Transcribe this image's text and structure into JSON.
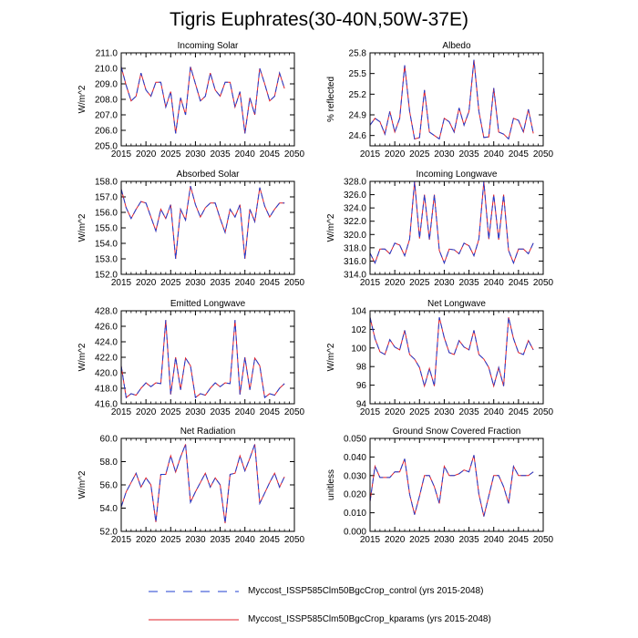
{
  "title": "Tigris Euphrates(30-40N,50W-37E)",
  "colors": {
    "control": "#1f3fd0",
    "kparams": "#e0202a",
    "axis": "#000000"
  },
  "legend": {
    "control_label": "Myccost_ISSP585Clm50BgcCrop_control (yrs 2015-2048)",
    "kparams_label": "Myccost_ISSP585Clm50BgcCrop_kparams (yrs 2015-2048)"
  },
  "chart_data": [
    {
      "type": "line",
      "title": "Incoming Solar",
      "xlabel": "",
      "ylabel": "W/m^2",
      "xlim": [
        2015,
        2050
      ],
      "ylim": [
        205.0,
        211.0
      ],
      "xticks": [
        2015,
        2020,
        2025,
        2030,
        2035,
        2040,
        2045,
        2050
      ],
      "yticks": [
        "205.0",
        "206.0",
        "207.0",
        "208.0",
        "209.0",
        "210.0",
        "211.0"
      ],
      "x_start": 2015,
      "series": [
        {
          "name": "control",
          "values": [
            210.1,
            208.9,
            207.9,
            208.2,
            209.7,
            208.6,
            208.2,
            209.1,
            209.1,
            207.5,
            208.5,
            205.8,
            208.1,
            207.0,
            210.1,
            209.0,
            207.9,
            208.2,
            209.7,
            208.6,
            208.2,
            209.1,
            209.1,
            207.5,
            208.5,
            205.8,
            208.1,
            207.0,
            210.0,
            209.0,
            207.9,
            208.2,
            209.7,
            208.7
          ]
        },
        {
          "name": "kparams",
          "values": [
            210.1,
            208.9,
            207.9,
            208.2,
            209.7,
            208.6,
            208.2,
            209.1,
            209.1,
            207.5,
            208.5,
            205.8,
            208.1,
            207.0,
            210.1,
            209.0,
            207.9,
            208.2,
            209.7,
            208.6,
            208.2,
            209.1,
            209.1,
            207.5,
            208.5,
            205.8,
            208.1,
            207.0,
            210.0,
            209.0,
            207.9,
            208.2,
            209.7,
            208.7
          ]
        }
      ]
    },
    {
      "type": "line",
      "title": "Albedo",
      "xlabel": "",
      "ylabel": "% reflected",
      "xlim": [
        2015,
        2050
      ],
      "ylim": [
        24.45,
        25.8
      ],
      "xticks": [
        2015,
        2020,
        2025,
        2030,
        2035,
        2040,
        2045,
        2050
      ],
      "yticks": [
        "24.6",
        "24.9",
        "25.2",
        "25.5",
        "25.8"
      ],
      "x_start": 2015,
      "series": [
        {
          "name": "control",
          "values": [
            24.75,
            24.85,
            24.8,
            24.62,
            24.95,
            24.65,
            24.85,
            25.62,
            24.95,
            24.55,
            24.57,
            25.26,
            24.65,
            24.6,
            24.55,
            24.85,
            24.8,
            24.65,
            25.0,
            24.75,
            24.95,
            25.7,
            24.95,
            24.57,
            24.58,
            25.29,
            24.65,
            24.62,
            24.55,
            24.85,
            24.82,
            24.65,
            24.98,
            24.63
          ]
        },
        {
          "name": "kparams",
          "values": [
            24.75,
            24.85,
            24.8,
            24.62,
            24.95,
            24.65,
            24.85,
            25.62,
            24.95,
            24.55,
            24.57,
            25.26,
            24.65,
            24.6,
            24.55,
            24.85,
            24.8,
            24.65,
            25.0,
            24.75,
            24.95,
            25.7,
            24.95,
            24.57,
            24.58,
            25.29,
            24.65,
            24.62,
            24.55,
            24.85,
            24.82,
            24.65,
            24.98,
            24.63
          ]
        }
      ]
    },
    {
      "type": "line",
      "title": "Absorbed Solar",
      "xlabel": "",
      "ylabel": "W/m^2",
      "xlim": [
        2015,
        2050
      ],
      "ylim": [
        152.0,
        158.0
      ],
      "xticks": [
        2015,
        2020,
        2025,
        2030,
        2035,
        2040,
        2045,
        2050
      ],
      "yticks": [
        "152.0",
        "153.0",
        "154.0",
        "155.0",
        "156.0",
        "157.0",
        "158.0"
      ],
      "x_start": 2015,
      "series": [
        {
          "name": "control",
          "values": [
            157.5,
            156.3,
            155.6,
            156.2,
            156.7,
            156.6,
            155.7,
            154.8,
            156.2,
            155.6,
            156.5,
            153.0,
            156.2,
            155.5,
            157.7,
            156.5,
            155.7,
            156.3,
            156.6,
            156.6,
            155.6,
            154.7,
            156.2,
            155.7,
            156.5,
            153.0,
            156.2,
            155.4,
            157.6,
            156.4,
            155.7,
            156.2,
            156.6,
            156.6
          ]
        },
        {
          "name": "kparams",
          "values": [
            157.5,
            156.3,
            155.6,
            156.2,
            156.7,
            156.6,
            155.7,
            154.8,
            156.2,
            155.6,
            156.5,
            153.0,
            156.2,
            155.5,
            157.7,
            156.5,
            155.7,
            156.3,
            156.6,
            156.6,
            155.6,
            154.7,
            156.2,
            155.7,
            156.5,
            153.0,
            156.2,
            155.4,
            157.6,
            156.4,
            155.7,
            156.2,
            156.6,
            156.6
          ]
        }
      ]
    },
    {
      "type": "line",
      "title": "Incoming Longwave",
      "xlabel": "",
      "ylabel": "W/m^2",
      "xlim": [
        2015,
        2050
      ],
      "ylim": [
        314.0,
        328.0
      ],
      "xticks": [
        2015,
        2020,
        2025,
        2030,
        2035,
        2040,
        2045,
        2050
      ],
      "yticks": [
        "314.0",
        "316.0",
        "318.0",
        "320.0",
        "322.0",
        "324.0",
        "326.0",
        "328.0"
      ],
      "x_start": 2015,
      "series": [
        {
          "name": "control",
          "values": [
            317.2,
            315.7,
            317.8,
            317.8,
            317.1,
            318.7,
            318.4,
            316.8,
            319.3,
            328.0,
            319.4,
            326.0,
            319.2,
            326.0,
            317.6,
            315.7,
            317.8,
            317.7,
            317.1,
            318.7,
            318.3,
            316.8,
            319.3,
            328.0,
            319.3,
            326.0,
            319.2,
            326.0,
            317.6,
            315.7,
            317.8,
            317.8,
            317.1,
            318.7
          ]
        },
        {
          "name": "kparams",
          "values": [
            317.2,
            315.7,
            317.8,
            317.8,
            317.1,
            318.7,
            318.4,
            316.8,
            319.3,
            328.0,
            319.4,
            326.0,
            319.2,
            326.0,
            317.6,
            315.7,
            317.8,
            317.7,
            317.1,
            318.7,
            318.3,
            316.8,
            319.3,
            328.0,
            319.3,
            326.0,
            319.2,
            326.0,
            317.6,
            315.7,
            317.8,
            317.8,
            317.1,
            318.7
          ]
        }
      ]
    },
    {
      "type": "line",
      "title": "Emitted Longwave",
      "xlabel": "",
      "ylabel": "W/m^2",
      "xlim": [
        2015,
        2050
      ],
      "ylim": [
        416.0,
        428.0
      ],
      "xticks": [
        2015,
        2020,
        2025,
        2030,
        2035,
        2040,
        2045,
        2050
      ],
      "yticks": [
        "416.0",
        "418.0",
        "420.0",
        "422.0",
        "424.0",
        "426.0",
        "428.0"
      ],
      "x_start": 2015,
      "series": [
        {
          "name": "control",
          "values": [
            420.9,
            416.8,
            417.3,
            417.1,
            418.0,
            418.7,
            418.2,
            418.7,
            418.6,
            426.8,
            417.2,
            422.0,
            417.8,
            421.9,
            420.9,
            416.8,
            417.3,
            417.1,
            418.0,
            418.7,
            418.2,
            418.7,
            418.6,
            426.8,
            417.2,
            422.0,
            417.8,
            421.9,
            420.9,
            416.8,
            417.3,
            417.1,
            418.0,
            418.6
          ]
        },
        {
          "name": "kparams",
          "values": [
            420.9,
            416.8,
            417.3,
            417.1,
            418.0,
            418.7,
            418.2,
            418.7,
            418.6,
            426.8,
            417.2,
            422.0,
            417.8,
            421.9,
            420.9,
            416.8,
            417.3,
            417.1,
            418.0,
            418.7,
            418.2,
            418.7,
            418.6,
            426.8,
            417.2,
            422.0,
            417.8,
            421.9,
            420.9,
            416.8,
            417.3,
            417.1,
            418.0,
            418.6
          ]
        }
      ]
    },
    {
      "type": "line",
      "title": "Net Longwave",
      "xlabel": "",
      "ylabel": "W/m^2",
      "xlim": [
        2015,
        2050
      ],
      "ylim": [
        94,
        104
      ],
      "xticks": [
        2015,
        2020,
        2025,
        2030,
        2035,
        2040,
        2045,
        2050
      ],
      "yticks": [
        "94",
        "96",
        "98",
        "100",
        "102",
        "104"
      ],
      "x_start": 2015,
      "series": [
        {
          "name": "control",
          "values": [
            103.3,
            101.0,
            99.6,
            99.3,
            100.9,
            100.1,
            99.8,
            101.9,
            99.3,
            98.8,
            97.9,
            95.9,
            97.8,
            95.9,
            103.3,
            101.1,
            99.5,
            99.3,
            100.8,
            100.1,
            99.8,
            101.9,
            99.3,
            98.8,
            97.9,
            95.9,
            97.9,
            95.9,
            103.3,
            101.0,
            99.5,
            99.3,
            100.8,
            99.8
          ]
        },
        {
          "name": "kparams",
          "values": [
            103.3,
            101.0,
            99.6,
            99.3,
            100.9,
            100.1,
            99.8,
            101.9,
            99.3,
            98.8,
            97.9,
            95.9,
            97.8,
            95.9,
            103.3,
            101.1,
            99.5,
            99.3,
            100.8,
            100.1,
            99.8,
            101.9,
            99.3,
            98.8,
            97.9,
            95.9,
            97.9,
            95.9,
            103.3,
            101.0,
            99.5,
            99.3,
            100.8,
            99.8
          ]
        }
      ]
    },
    {
      "type": "line",
      "title": "Net Radiation",
      "xlabel": "",
      "ylabel": "W/m^2",
      "xlim": [
        2015,
        2050
      ],
      "ylim": [
        52.0,
        60.0
      ],
      "xticks": [
        2015,
        2020,
        2025,
        2030,
        2035,
        2040,
        2045,
        2050
      ],
      "yticks": [
        "52.0",
        "54.0",
        "56.0",
        "58.0",
        "60.0"
      ],
      "x_start": 2015,
      "series": [
        {
          "name": "control",
          "values": [
            54.1,
            55.4,
            56.2,
            57.0,
            55.8,
            56.6,
            56.0,
            52.8,
            56.9,
            56.9,
            58.5,
            57.1,
            58.4,
            59.5,
            54.5,
            55.4,
            56.2,
            57.0,
            55.8,
            56.6,
            56.0,
            52.7,
            56.9,
            57.0,
            58.5,
            57.2,
            58.3,
            59.5,
            54.4,
            55.3,
            56.2,
            57.0,
            55.8,
            56.7
          ]
        },
        {
          "name": "kparams",
          "values": [
            54.1,
            55.4,
            56.2,
            57.0,
            55.8,
            56.6,
            56.0,
            52.8,
            56.9,
            56.9,
            58.5,
            57.1,
            58.4,
            59.5,
            54.5,
            55.4,
            56.2,
            57.0,
            55.8,
            56.6,
            56.0,
            52.7,
            56.9,
            57.0,
            58.5,
            57.2,
            58.3,
            59.5,
            54.4,
            55.3,
            56.2,
            57.0,
            55.8,
            56.7
          ]
        }
      ]
    },
    {
      "type": "line",
      "title": "Ground Snow Covered Fraction",
      "xlabel": "",
      "ylabel": "unitless",
      "xlim": [
        2015,
        2050
      ],
      "ylim": [
        0.0,
        0.05
      ],
      "xticks": [
        2015,
        2020,
        2025,
        2030,
        2035,
        2040,
        2045,
        2050
      ],
      "yticks": [
        "0.000",
        "0.010",
        "0.020",
        "0.030",
        "0.040",
        "0.050"
      ],
      "x_start": 2015,
      "series": [
        {
          "name": "control",
          "values": [
            0.016,
            0.035,
            0.029,
            0.029,
            0.029,
            0.032,
            0.032,
            0.039,
            0.02,
            0.009,
            0.019,
            0.03,
            0.03,
            0.024,
            0.015,
            0.035,
            0.03,
            0.03,
            0.031,
            0.033,
            0.032,
            0.041,
            0.02,
            0.008,
            0.019,
            0.03,
            0.03,
            0.024,
            0.015,
            0.035,
            0.03,
            0.03,
            0.03,
            0.032
          ]
        },
        {
          "name": "kparams",
          "values": [
            0.016,
            0.035,
            0.029,
            0.029,
            0.029,
            0.032,
            0.032,
            0.039,
            0.02,
            0.009,
            0.019,
            0.03,
            0.03,
            0.024,
            0.015,
            0.035,
            0.03,
            0.03,
            0.031,
            0.033,
            0.032,
            0.041,
            0.02,
            0.008,
            0.019,
            0.03,
            0.03,
            0.024,
            0.015,
            0.035,
            0.03,
            0.03,
            0.03,
            0.032
          ]
        }
      ]
    }
  ]
}
